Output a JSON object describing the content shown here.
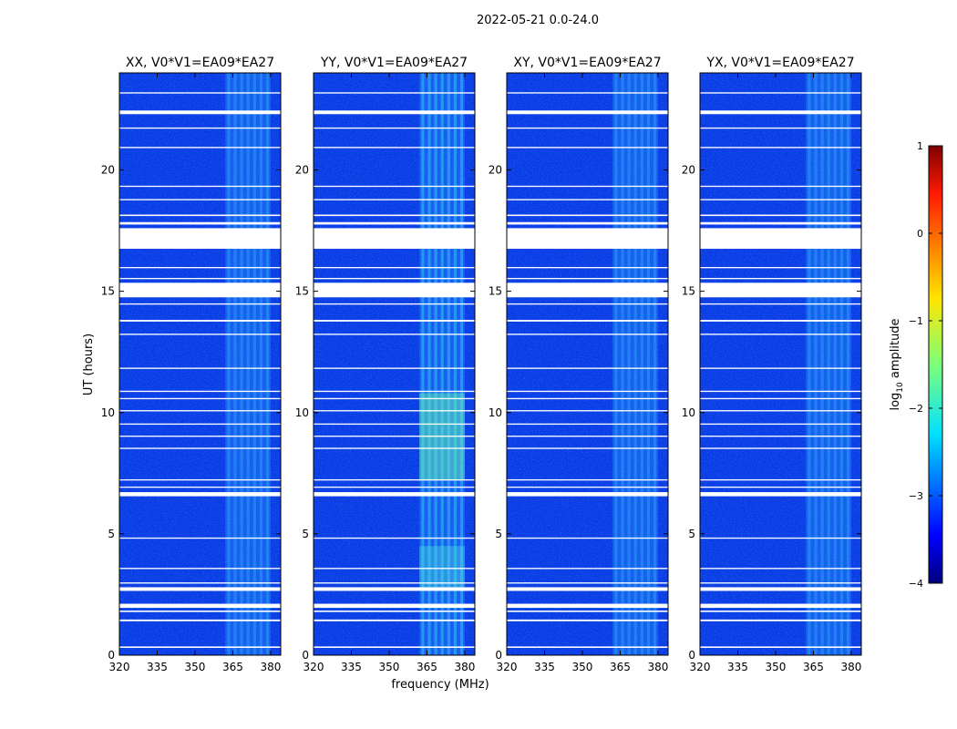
{
  "chart_data": {
    "type": "heatmap",
    "suptitle": "2022-05-21 0.0-24.0",
    "xlabel": "frequency (MHz)",
    "ylabel": "UT (hours)",
    "xlim": [
      320,
      384
    ],
    "ylim": [
      0,
      24
    ],
    "xticks": [
      320,
      335,
      350,
      365,
      380
    ],
    "yticks": [
      0,
      5,
      10,
      15,
      20
    ],
    "panels": [
      {
        "title": "XX, V0*V1=EA09*EA27"
      },
      {
        "title": "YY, V0*V1=EA09*EA27"
      },
      {
        "title": "XY, V0*V1=EA09*EA27"
      },
      {
        "title": "YX, V0*V1=EA09*EA27"
      }
    ],
    "rfi_band_mhz": [
      362,
      380
    ],
    "flagged_rows_hours": [
      [
        0.3,
        0.36
      ],
      [
        1.4,
        1.47
      ],
      [
        1.78,
        1.84
      ],
      [
        1.95,
        2.12
      ],
      [
        2.65,
        2.8
      ],
      [
        2.95,
        3.0
      ],
      [
        3.55,
        3.6
      ],
      [
        4.8,
        4.85
      ],
      [
        6.55,
        6.72
      ],
      [
        6.9,
        6.95
      ],
      [
        7.2,
        7.25
      ],
      [
        8.5,
        8.55
      ],
      [
        9.0,
        9.05
      ],
      [
        9.5,
        9.55
      ],
      [
        10.05,
        10.1
      ],
      [
        10.55,
        10.6
      ],
      [
        10.85,
        10.9
      ],
      [
        11.8,
        11.85
      ],
      [
        13.2,
        13.25
      ],
      [
        13.75,
        13.82
      ],
      [
        14.45,
        14.5
      ],
      [
        14.75,
        15.35
      ],
      [
        15.5,
        15.55
      ],
      [
        15.95,
        16.0
      ],
      [
        16.75,
        17.6
      ],
      [
        17.75,
        17.85
      ],
      [
        18.1,
        18.16
      ],
      [
        18.75,
        18.8
      ],
      [
        19.3,
        19.35
      ],
      [
        20.9,
        20.95
      ],
      [
        21.7,
        21.75
      ],
      [
        22.3,
        22.45
      ],
      [
        23.15,
        23.2
      ]
    ],
    "colorbar": {
      "label": "log10 amplitude",
      "range": [
        -4,
        1
      ],
      "ticks": [
        "1",
        "0",
        "−1",
        "−2",
        "−3",
        "−4"
      ],
      "colormap": "jet"
    }
  }
}
